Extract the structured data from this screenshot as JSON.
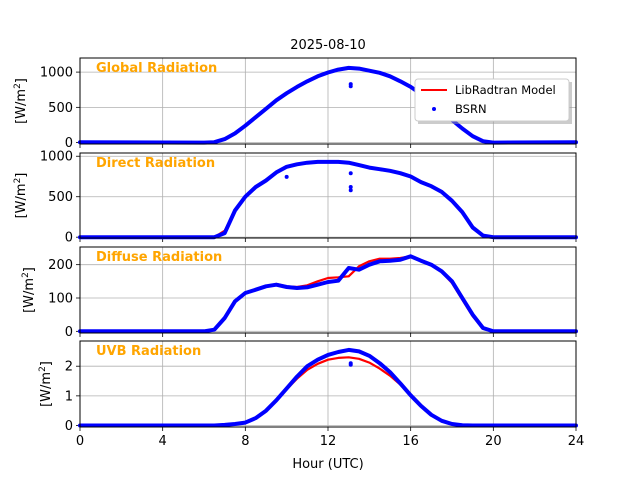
{
  "chart_data": {
    "type": "line",
    "title": "2025-08-10",
    "xlabel": "Hour (UTC)",
    "xlim": [
      0,
      24
    ],
    "xticks": [
      0,
      4,
      8,
      12,
      16,
      20,
      24
    ],
    "grid": true,
    "legend": {
      "placement": "top-right (first panel)",
      "entries": [
        "LibRadtran Model",
        "BSRN"
      ]
    },
    "colors": {
      "model": "#ff0000",
      "bsrn": "#0000ff",
      "panel_title": "#ffa500"
    },
    "x": [
      0,
      6,
      6.5,
      7,
      7.5,
      8,
      8.5,
      9,
      9.5,
      10,
      10.5,
      11,
      11.5,
      12,
      12.5,
      13,
      13.5,
      14,
      14.5,
      15,
      15.5,
      16,
      16.5,
      17,
      17.5,
      18,
      18.5,
      19,
      19.5,
      20,
      24
    ],
    "panels": [
      {
        "name": "Global Radiation",
        "ylabel": "[W/m2]",
        "ylim": [
          -20,
          1200
        ],
        "yticks": [
          0,
          500,
          1000
        ],
        "model": [
          0,
          0,
          5,
          50,
          130,
          240,
          360,
          480,
          600,
          700,
          790,
          870,
          940,
          990,
          1030,
          1050,
          1045,
          1020,
          990,
          940,
          870,
          790,
          690,
          580,
          450,
          320,
          200,
          90,
          20,
          0,
          0
        ],
        "bsrn": [
          5,
          0,
          5,
          50,
          130,
          240,
          360,
          480,
          600,
          700,
          790,
          870,
          940,
          995,
          1035,
          1060,
          1050,
          1020,
          990,
          940,
          870,
          790,
          690,
          580,
          450,
          320,
          200,
          90,
          20,
          0,
          5
        ],
        "bsrn_outliers": [
          [
            13.1,
            800
          ],
          [
            13.1,
            830
          ]
        ]
      },
      {
        "name": "Direct Radiation",
        "ylabel": "[W/m2]",
        "ylim": [
          -10,
          1040
        ],
        "yticks": [
          0,
          500,
          1000
        ],
        "model": [
          0,
          0,
          0,
          80,
          330,
          500,
          620,
          700,
          800,
          870,
          900,
          920,
          930,
          930,
          930,
          920,
          890,
          860,
          840,
          820,
          790,
          750,
          680,
          630,
          560,
          440,
          300,
          110,
          15,
          0,
          0
        ],
        "bsrn": [
          0,
          0,
          0,
          50,
          330,
          500,
          620,
          700,
          800,
          870,
          900,
          920,
          930,
          930,
          930,
          920,
          890,
          860,
          840,
          820,
          790,
          750,
          680,
          630,
          560,
          450,
          310,
          120,
          20,
          0,
          0
        ],
        "bsrn_outliers": [
          [
            10,
            745
          ],
          [
            13.1,
            580
          ],
          [
            13.1,
            620
          ],
          [
            13.1,
            790
          ]
        ]
      },
      {
        "name": "Diffuse Radiation",
        "ylabel": "[W/m2]",
        "ylim": [
          -5,
          253
        ],
        "yticks": [
          0,
          100,
          200
        ],
        "model": [
          0,
          0,
          5,
          40,
          90,
          115,
          125,
          135,
          142,
          135,
          133,
          138,
          150,
          160,
          162,
          165,
          195,
          210,
          218,
          218,
          220,
          225,
          212,
          200,
          178,
          145,
          95,
          45,
          8,
          0,
          0
        ],
        "bsrn": [
          0,
          0,
          5,
          40,
          90,
          115,
          125,
          135,
          140,
          133,
          130,
          132,
          140,
          148,
          152,
          190,
          185,
          200,
          210,
          212,
          215,
          225,
          212,
          200,
          180,
          150,
          100,
          50,
          10,
          0,
          0
        ],
        "bsrn_outliers": []
      },
      {
        "name": "UVB Radiation",
        "ylabel": "[W/m2]",
        "ylim": [
          -0.05,
          2.85
        ],
        "yticks": [
          0,
          1,
          2
        ],
        "model": [
          0,
          0,
          0,
          0.02,
          0.05,
          0.1,
          0.25,
          0.5,
          0.85,
          1.22,
          1.58,
          1.88,
          2.08,
          2.22,
          2.28,
          2.3,
          2.25,
          2.12,
          1.92,
          1.68,
          1.38,
          1.02,
          0.68,
          0.37,
          0.16,
          0.05,
          0.01,
          0,
          0,
          0,
          0
        ],
        "bsrn": [
          0,
          0,
          0,
          0.02,
          0.05,
          0.1,
          0.25,
          0.5,
          0.85,
          1.25,
          1.65,
          2.0,
          2.22,
          2.38,
          2.48,
          2.55,
          2.5,
          2.35,
          2.1,
          1.8,
          1.42,
          1.02,
          0.66,
          0.36,
          0.16,
          0.05,
          0.01,
          0,
          0,
          0,
          0
        ],
        "bsrn_outliers": [
          [
            13.1,
            2.05
          ],
          [
            13.1,
            2.1
          ]
        ]
      }
    ]
  }
}
